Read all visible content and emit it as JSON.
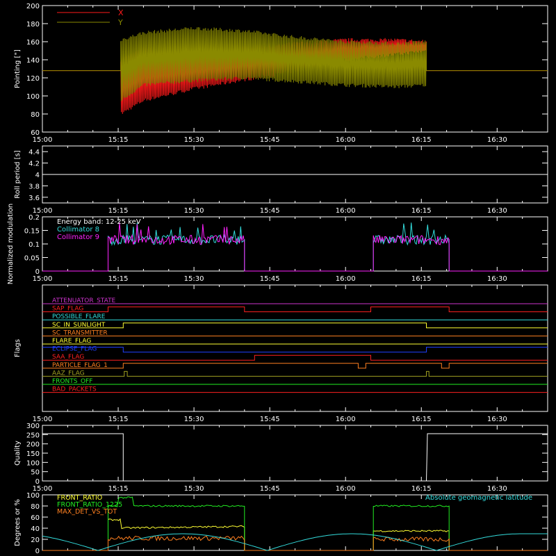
{
  "time_ticks": [
    "15:00",
    "15:15",
    "15:30",
    "15:45",
    "16:00",
    "16:15",
    "16:30"
  ],
  "colors": {
    "x": "#ff1a1a",
    "y": "#8a8a00",
    "white": "#ffffff",
    "cyan": "#33dddd",
    "magenta": "#ff22ff",
    "red": "#ff2020",
    "orange": "#ff8020",
    "yellow": "#ffff33",
    "blue": "#2040ff",
    "green": "#22ee22",
    "olive": "#a0a020",
    "purple": "#cc33cc"
  },
  "chart_data": [
    {
      "type": "line",
      "id": "pointing",
      "ylabel": "Pointing [\"]",
      "ylim": [
        60,
        200
      ],
      "yticks": [
        60,
        80,
        100,
        120,
        140,
        160,
        180,
        200
      ],
      "xlim": [
        "15:00",
        "16:40"
      ],
      "legend": [
        {
          "name": "X",
          "color": "#ff1a1a"
        },
        {
          "name": "Y",
          "color": "#8a8a00"
        }
      ],
      "series": [
        {
          "name": "X",
          "baseline": 128,
          "active": [
            "15:15.5",
            "16:15.5"
          ],
          "upper": [
            [
              15.5,
              140
            ],
            [
              20,
              152
            ],
            [
              30,
              150
            ],
            [
              40,
              153
            ],
            [
              50,
              158
            ],
            [
              60,
              162
            ],
            [
              70,
              162
            ],
            [
              76,
              160
            ]
          ],
          "lower": [
            [
              15.5,
              80
            ],
            [
              20,
              95
            ],
            [
              30,
              108
            ],
            [
              40,
              118
            ],
            [
              45,
              122
            ],
            [
              50,
              128
            ],
            [
              60,
              140
            ],
            [
              70,
              146
            ],
            [
              76,
              150
            ]
          ]
        },
        {
          "name": "Y",
          "baseline": 128,
          "active": [
            "15:15.5",
            "16:15.5"
          ],
          "upper": [
            [
              15.5,
              162
            ],
            [
              20,
              170
            ],
            [
              30,
              175
            ],
            [
              40,
              172
            ],
            [
              50,
              165
            ],
            [
              60,
              160
            ],
            [
              70,
              158
            ],
            [
              76,
              160
            ]
          ],
          "lower": [
            [
              15.5,
              95
            ],
            [
              20,
              112
            ],
            [
              30,
              117
            ],
            [
              40,
              120
            ],
            [
              50,
              116
            ],
            [
              60,
              112
            ],
            [
              70,
              110
            ],
            [
              76,
              112
            ]
          ]
        }
      ]
    },
    {
      "type": "line",
      "id": "roll",
      "ylabel": "Roll period [s]",
      "ylim": [
        3.5,
        4.5
      ],
      "yticks": [
        3.6,
        3.8,
        4.0,
        4.2,
        4.4
      ],
      "series": [
        {
          "name": "roll",
          "value": 4.0
        }
      ]
    },
    {
      "type": "line",
      "id": "modulation",
      "ylabel": "Normalized modulation",
      "ylim": [
        0.0,
        0.2
      ],
      "yticks": [
        0.0,
        0.05,
        0.1,
        0.15,
        0.2
      ],
      "legend_text": [
        "Energy band: 12-25 keV",
        "Collimator 8",
        "Collimator 9"
      ],
      "series": [
        {
          "name": "Collimator 8",
          "color": "#33dddd",
          "mean": 0.115,
          "segments": [
            [
              13,
              40
            ],
            [
              65.5,
              80.5
            ]
          ]
        },
        {
          "name": "Collimator 9",
          "color": "#ff22ff",
          "mean": 0.115,
          "segments": [
            [
              13,
              40
            ],
            [
              65.5,
              80.5
            ]
          ]
        }
      ]
    },
    {
      "type": "step",
      "id": "flags",
      "ylabel": "Flags",
      "flags": [
        {
          "name": "ATTENUATOR_STATE",
          "color": "#cc33cc",
          "changes": []
        },
        {
          "name": "SAP_FLAG",
          "color": "#ff2020",
          "changes": [
            [
              13,
              1
            ],
            [
              40,
              0
            ],
            [
              65,
              1
            ],
            [
              80.5,
              0
            ]
          ]
        },
        {
          "name": "POSSIBLE_FLARE",
          "color": "#33dddd",
          "changes": []
        },
        {
          "name": "SC_IN_SUNLIGHT",
          "color": "#ffff33",
          "changes": [
            [
              16,
              1
            ],
            [
              76,
              0
            ]
          ]
        },
        {
          "name": "SC_TRANSMITTER",
          "color": "#ff8020",
          "changes": []
        },
        {
          "name": "FLARE_FLAG",
          "color": "#ffff33",
          "changes": []
        },
        {
          "name": "ECLIPSE_FLAG",
          "color": "#2040ff",
          "changes": [
            [
              16,
              0
            ],
            [
              76,
              1
            ]
          ]
        },
        {
          "name": "SAA_FLAG",
          "color": "#ff2020",
          "changes": [
            [
              42,
              1
            ],
            [
              65,
              0
            ]
          ]
        },
        {
          "name": "PARTICLE_FLAG_1",
          "color": "#ff8020",
          "changes": [
            [
              16,
              1
            ],
            [
              62.5,
              0
            ],
            [
              64,
              1
            ],
            [
              79,
              0
            ],
            [
              80.5,
              1
            ]
          ]
        },
        {
          "name": "AAZ_FLAG",
          "color": "#a0a020",
          "changes": [
            [
              16.2,
              1
            ],
            [
              16.8,
              0
            ],
            [
              76,
              1
            ],
            [
              76.5,
              0
            ]
          ]
        },
        {
          "name": "FRONTS_OFF",
          "color": "#22ee22",
          "changes": []
        },
        {
          "name": "BAD_PACKETS",
          "color": "#ff2020",
          "changes": []
        }
      ]
    },
    {
      "type": "line",
      "id": "quality",
      "ylabel": "Quality",
      "ylim": [
        0,
        300
      ],
      "yticks": [
        0,
        50,
        100,
        150,
        200,
        250,
        300
      ],
      "series": [
        {
          "name": "quality",
          "points": [
            [
              0,
              255
            ],
            [
              16,
              255
            ],
            [
              16,
              0
            ],
            [
              76,
              0
            ],
            [
              76.2,
              255
            ],
            [
              100,
              255
            ]
          ]
        }
      ]
    },
    {
      "type": "line",
      "id": "ratios",
      "ylabel": "Degrees or %",
      "ylim": [
        0,
        100
      ],
      "yticks": [
        0,
        20,
        40,
        60,
        80,
        100
      ],
      "legend": [
        {
          "name": "FRONT_RATIO",
          "color": "#ffff33"
        },
        {
          "name": "FRONT_RATIO_1225",
          "color": "#22ee22"
        },
        {
          "name": "MAX_DET_VS_TOT",
          "color": "#ff8020"
        },
        {
          "name": "Absolute geomagnetic latitude",
          "color": "#33dddd"
        }
      ],
      "series": [
        {
          "name": "FRONT_RATIO",
          "color": "#ffff33",
          "segments": [
            [
              13,
              40,
              40
            ],
            [
              65.5,
              80.5,
              35
            ]
          ]
        },
        {
          "name": "FRONT_RATIO_1225",
          "color": "#22ee22",
          "segments": [
            [
              13,
              40,
              80
            ],
            [
              65.5,
              80.5,
              80
            ]
          ]
        },
        {
          "name": "MAX_DET_VS_TOT",
          "color": "#ff8020",
          "segments": [
            [
              13,
              40,
              22
            ],
            [
              65.5,
              80.5,
              20
            ]
          ]
        },
        {
          "name": "Absolute geomagnetic latitude",
          "color": "#33dddd",
          "minima": [
            11,
            44.5,
            78
          ],
          "max": 30
        }
      ]
    }
  ]
}
